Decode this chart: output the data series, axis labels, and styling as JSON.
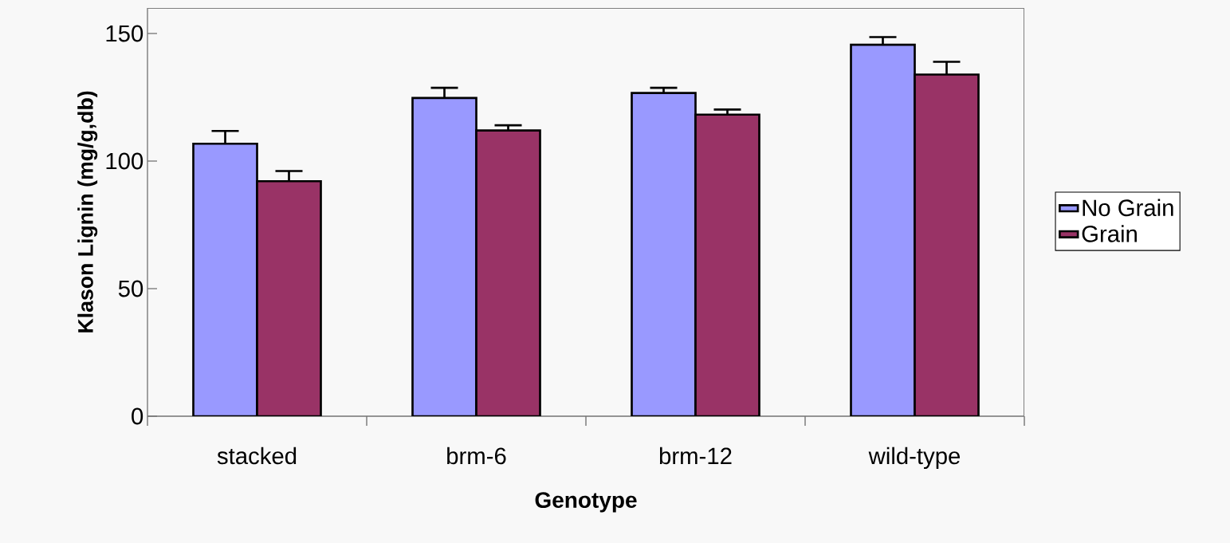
{
  "chart_data": {
    "type": "bar",
    "xlabel": "Genotype",
    "ylabel": "Klason Lignin (mg/g,db)",
    "categories": [
      "stacked",
      "brm-6",
      "brm-12",
      "wild-type"
    ],
    "series": [
      {
        "name": "No Grain",
        "color": "#9999ff",
        "values": [
          106.8,
          124.7,
          126.7,
          145.6
        ],
        "errors": [
          5,
          4,
          2,
          3
        ]
      },
      {
        "name": "Grain",
        "color": "#993366",
        "values": [
          92.1,
          112.0,
          118.2,
          133.9
        ],
        "errors": [
          4,
          2,
          2,
          5
        ]
      }
    ],
    "ylim": [
      0,
      160
    ],
    "yticks": [
      0,
      50,
      100,
      150
    ],
    "legend": "right"
  }
}
